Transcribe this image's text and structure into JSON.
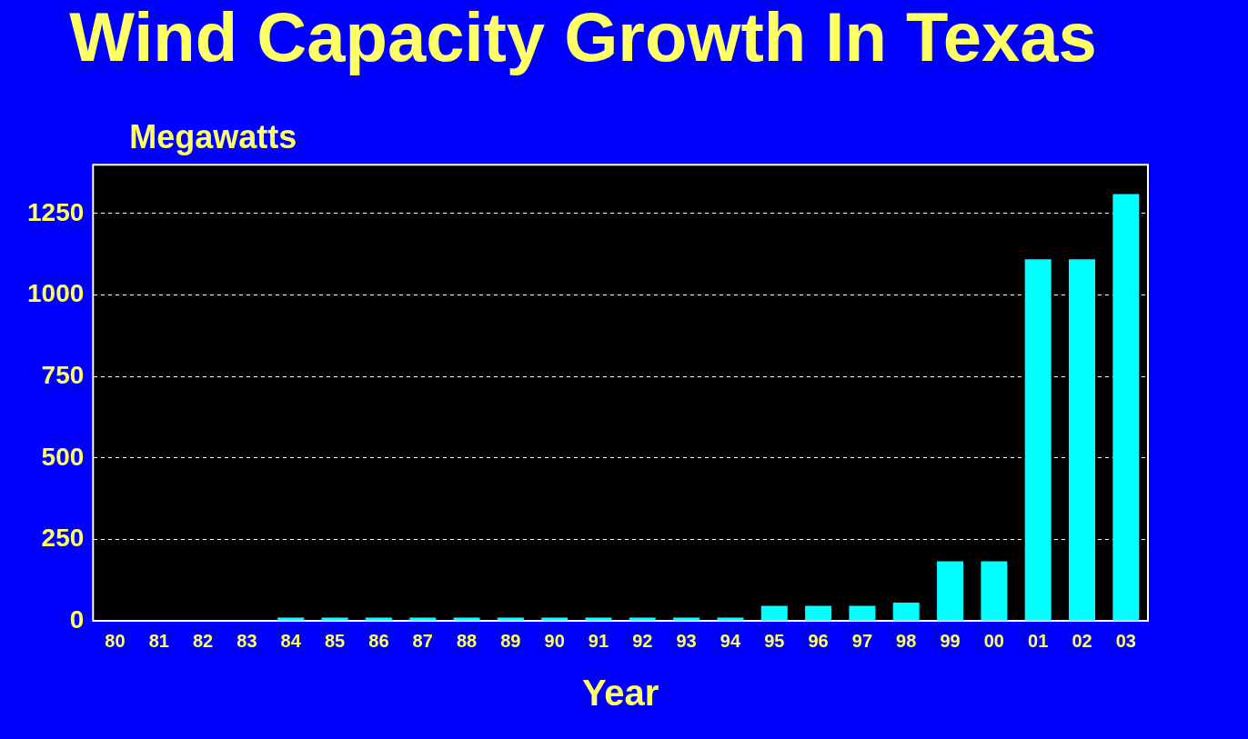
{
  "chart_data": {
    "type": "bar",
    "title": "Wind Capacity Growth In Texas",
    "ylabel": "Megawatts",
    "xlabel": "Year",
    "categories": [
      "80",
      "81",
      "82",
      "83",
      "84",
      "85",
      "86",
      "87",
      "88",
      "89",
      "90",
      "91",
      "92",
      "93",
      "94",
      "95",
      "96",
      "97",
      "98",
      "99",
      "00",
      "01",
      "02",
      "03"
    ],
    "values": [
      null,
      null,
      null,
      null,
      10,
      10,
      10,
      10,
      10,
      10,
      10,
      10,
      10,
      10,
      10,
      46,
      46,
      46,
      56,
      183,
      183,
      1110,
      1110,
      1310
    ],
    "color": "#00ffff",
    "ylim": [
      0,
      1400
    ],
    "yticks": [
      0,
      250,
      500,
      750,
      1000,
      1250
    ],
    "grid": "y",
    "legend": false
  }
}
